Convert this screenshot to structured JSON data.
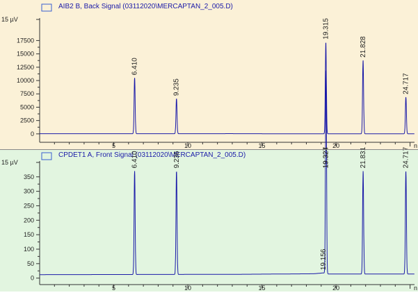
{
  "panel_colors": {
    "top_bg": "#fbf1d7",
    "bottom_bg": "#e2f5e0",
    "trace": "#1a1aa8",
    "axis": "#333333",
    "legend_box": "#3a5fd0"
  },
  "chart_data": [
    {
      "type": "line",
      "title": "AIB2 B, Back Signal (03112020\\MERCAPTAN_2_005.D)",
      "ylabel_unit": "µV",
      "xlim": [
        0,
        25.3
      ],
      "ylim": [
        -800,
        21200
      ],
      "x_ticks": [
        5,
        10,
        15,
        20
      ],
      "x_tick_labels": [
        "5",
        "10",
        "15",
        "20"
      ],
      "y_ticks": [
        0,
        2500,
        5000,
        7500,
        10000,
        12500,
        15000,
        17500
      ],
      "y_tick_labels": [
        "0",
        "2500",
        "5000",
        "7500",
        "10000",
        "12500",
        "15000",
        "17500"
      ],
      "y_top_label": "15 µV",
      "x_unit_partial": "n",
      "baseline": [
        [
          0,
          30
        ],
        [
          13.0,
          40
        ],
        [
          16.0,
          20
        ],
        [
          25.3,
          20
        ]
      ],
      "peaks": [
        {
          "x": 6.41,
          "y": 10500,
          "label": "6.410"
        },
        {
          "x": 9.235,
          "y": 6600,
          "label": "9.235"
        },
        {
          "x": 19.315,
          "y": 17200,
          "label": "19.315"
        },
        {
          "x": 21.828,
          "y": 13800,
          "label": "21.828"
        },
        {
          "x": 24.717,
          "y": 6900,
          "label": "24.717"
        }
      ]
    },
    {
      "type": "line",
      "title": "CPDET1 A, Front Signal (03112020\\MERCAPTAN_2_005.D)",
      "ylabel_unit": "µV",
      "xlim": [
        0,
        25.3
      ],
      "ylim": [
        -8,
        395
      ],
      "x_ticks": [
        5,
        10,
        15,
        20
      ],
      "x_tick_labels": [
        "5",
        "10",
        "15",
        "20"
      ],
      "y_ticks": [
        0,
        50,
        100,
        150,
        200,
        250,
        300,
        350
      ],
      "y_tick_labels": [
        "0",
        "50",
        "100",
        "150",
        "200",
        "250",
        "300",
        "350"
      ],
      "y_top_label": "15 µV",
      "x_unit_partial": "n",
      "baseline": [
        [
          0,
          12
        ],
        [
          13.0,
          13
        ],
        [
          18.5,
          15
        ],
        [
          19.156,
          18
        ],
        [
          19.5,
          14
        ],
        [
          25.3,
          14
        ]
      ],
      "peaks": [
        {
          "x": 6.41,
          "y": 370,
          "label": "6.410"
        },
        {
          "x": 9.236,
          "y": 370,
          "label": "9.236"
        },
        {
          "x": 19.156,
          "y": 18,
          "label": "19.156"
        },
        {
          "x": 19.324,
          "y": 370,
          "label": "19.324"
        },
        {
          "x": 19.327,
          "y": 370,
          "label": "19.327"
        },
        {
          "x": 21.831,
          "y": 370,
          "label": "21.831"
        },
        {
          "x": 24.717,
          "y": 370,
          "label": "24.717"
        }
      ]
    }
  ]
}
